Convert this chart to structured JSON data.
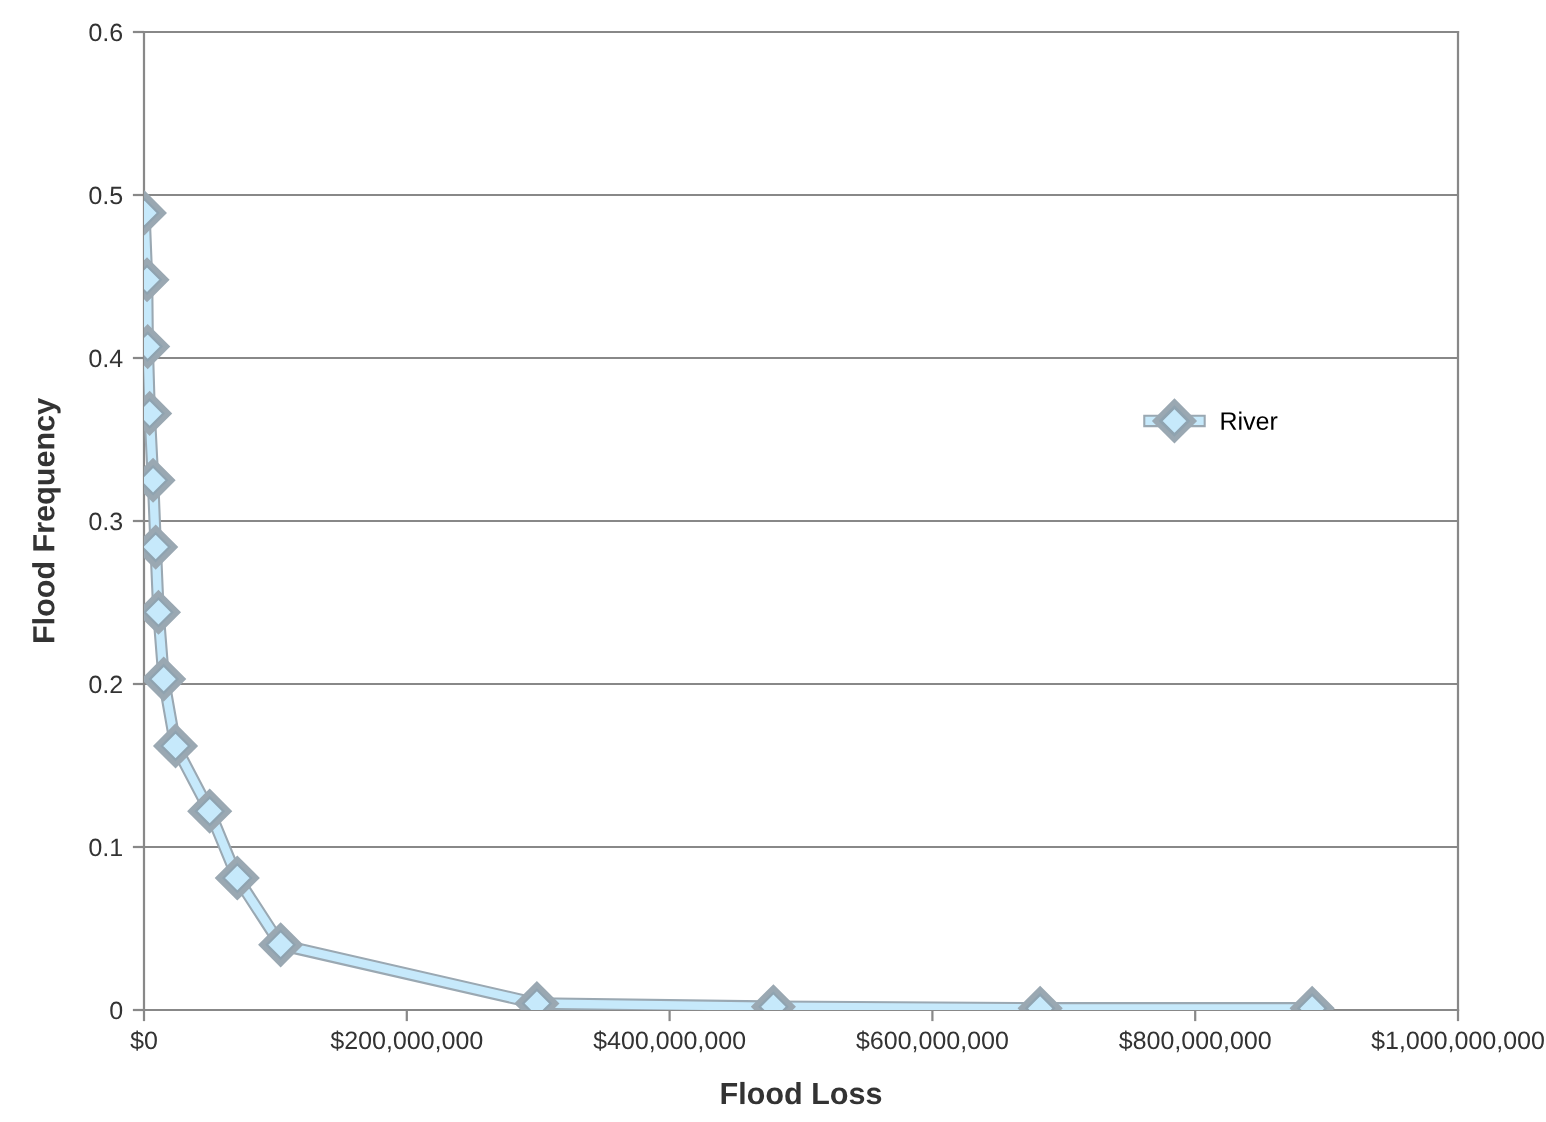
{
  "chart_data": {
    "type": "line",
    "xlabel": "Flood Loss",
    "ylabel": "Flood Frequency",
    "series": [
      {
        "name": "River",
        "color": "#c6e9fb",
        "x": [
          300000,
          2300000,
          2800000,
          4300000,
          6900000,
          8900000,
          11000000,
          15000000,
          24000000,
          50000000,
          71000000,
          104000000,
          299000000,
          479000000,
          682000000,
          889000000
        ],
        "values": [
          0.489,
          0.448,
          0.407,
          0.366,
          0.325,
          0.284,
          0.244,
          0.203,
          0.162,
          0.122,
          0.081,
          0.04,
          0.004,
          0.002,
          0.001,
          0.001
        ]
      }
    ],
    "xlim": [
      0,
      1000000000
    ],
    "xticks": [
      {
        "value": 0,
        "label": "$0"
      },
      {
        "value": 200000000,
        "label": "$200,000,000"
      },
      {
        "value": 400000000,
        "label": "$400,000,000"
      },
      {
        "value": 600000000,
        "label": "$600,000,000"
      },
      {
        "value": 800000000,
        "label": "$800,000,000"
      },
      {
        "value": 1000000000,
        "label": "$1,000,000,000"
      }
    ],
    "ylim": [
      0,
      0.6
    ],
    "yticks": [
      0,
      0.1,
      0.2,
      0.3,
      0.4,
      0.5,
      0.6
    ],
    "grid": "y",
    "legend": "right",
    "marker": "diamond",
    "line_style": "solid"
  }
}
